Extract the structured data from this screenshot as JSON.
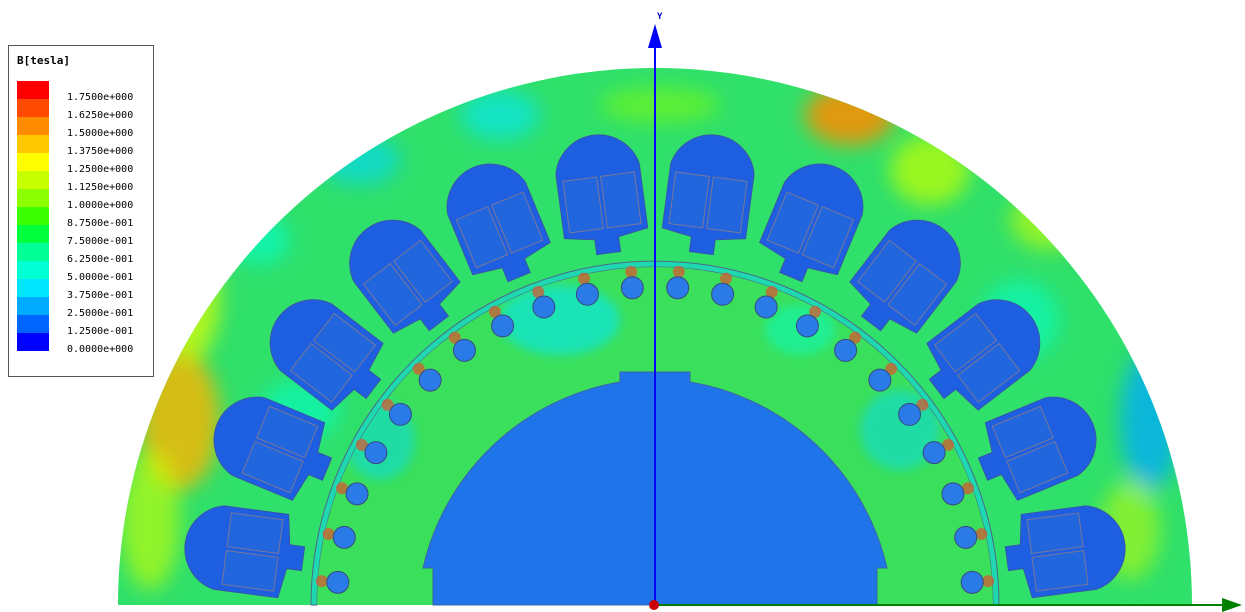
{
  "legend": {
    "title": "B[tesla]",
    "entries": [
      {
        "label": "1.7500e+000",
        "color": "#ff0000"
      },
      {
        "label": "1.6250e+000",
        "color": "#ff4a00"
      },
      {
        "label": "1.5000e+000",
        "color": "#ff8c00"
      },
      {
        "label": "1.3750e+000",
        "color": "#ffc800"
      },
      {
        "label": "1.2500e+000",
        "color": "#ffff00"
      },
      {
        "label": "1.1250e+000",
        "color": "#c8ff00"
      },
      {
        "label": "1.0000e+000",
        "color": "#8cff00"
      },
      {
        "label": "8.7500e-001",
        "color": "#3cff00"
      },
      {
        "label": "7.5000e-001",
        "color": "#00ff3c"
      },
      {
        "label": "6.2500e-001",
        "color": "#00ff96"
      },
      {
        "label": "5.0000e-001",
        "color": "#00ffd2"
      },
      {
        "label": "3.7500e-001",
        "color": "#00e6ff"
      },
      {
        "label": "2.5000e-001",
        "color": "#00aaff"
      },
      {
        "label": "1.2500e-001",
        "color": "#0064ff"
      },
      {
        "label": "0.0000e+000",
        "color": "#0000ff"
      }
    ]
  },
  "axes": {
    "y_label": "Y"
  },
  "colors": {
    "stator_base": "#2fe06a",
    "coil_blue": "#1d5fe0",
    "conductor_fill": "#2266dd",
    "rotor_core": "#1e74e8",
    "bar_fill": "#2a7ae8",
    "x_axis": "#008000",
    "y_axis": "#0000ff",
    "origin": "#cc0000"
  }
}
